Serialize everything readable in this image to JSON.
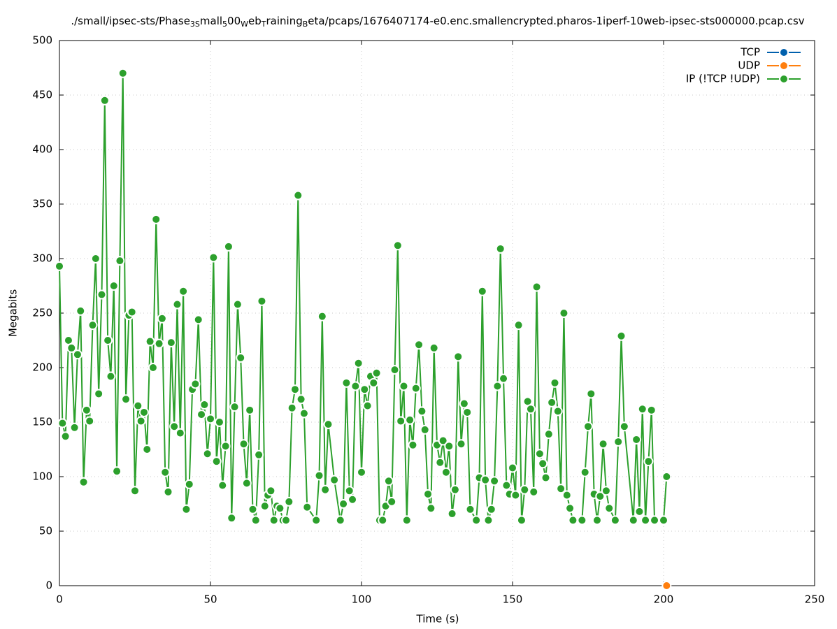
{
  "chart_data": {
    "type": "line",
    "title": [
      "./small/ipsec-sts/Phase",
      "3S",
      "mall",
      "5",
      "00",
      "W",
      "eb",
      "T",
      "raining",
      "B",
      "eta/pcaps/1676407174-e0.enc.smallencrypted.pharos-1iperf-10web-ipsec-sts000000.pcap.csv"
    ],
    "x_label": "Time (s)",
    "y_label": "Megabits",
    "xlim": [
      0,
      250
    ],
    "xticks": [
      0,
      50,
      100,
      150,
      200,
      250
    ],
    "ylim": [
      0,
      500
    ],
    "yticks": [
      0,
      50,
      100,
      150,
      200,
      250,
      300,
      350,
      400,
      450,
      500
    ],
    "grid": true,
    "legend": "top-right",
    "series": [
      {
        "name": "TCP",
        "color": "#0060ad",
        "x": [],
        "values": []
      },
      {
        "name": "UDP",
        "color": "#ff7f0e",
        "x": [
          201
        ],
        "values": [
          0
        ]
      },
      {
        "name": "IP (!TCP  !UDP)",
        "color": "#2ca02c",
        "x": [
          0,
          1,
          2,
          3,
          4,
          5,
          6,
          7,
          8,
          9,
          10,
          11,
          12,
          13,
          14,
          15,
          16,
          17,
          18,
          19,
          20,
          21,
          22,
          23,
          24,
          25,
          26,
          27,
          28,
          29,
          30,
          31,
          32,
          33,
          34,
          35,
          36,
          37,
          38,
          39,
          40,
          41,
          42,
          43,
          44,
          45,
          46,
          47,
          48,
          49,
          50,
          51,
          52,
          53,
          54,
          55,
          56,
          57,
          58,
          59,
          60,
          61,
          62,
          63,
          64,
          65,
          66,
          67,
          68,
          69,
          70,
          71,
          72,
          73,
          74,
          75,
          76,
          77,
          78,
          79,
          80,
          81,
          82,
          85,
          86,
          87,
          88,
          89,
          91,
          93,
          94,
          95,
          96,
          97,
          98,
          99,
          100,
          101,
          102,
          103,
          104,
          105,
          106,
          107,
          108,
          109,
          110,
          111,
          112,
          113,
          114,
          115,
          116,
          117,
          118,
          119,
          120,
          121,
          122,
          123,
          124,
          125,
          126,
          127,
          128,
          129,
          130,
          131,
          132,
          133,
          134,
          135,
          136,
          138,
          139,
          140,
          141,
          142,
          143,
          144,
          145,
          146,
          147,
          148,
          149,
          150,
          151,
          152,
          153,
          154,
          155,
          156,
          157,
          158,
          159,
          160,
          161,
          162,
          163,
          164,
          165,
          166,
          167,
          168,
          169,
          170,
          173,
          174,
          175,
          176,
          177,
          178,
          179,
          180,
          181,
          182,
          184,
          185,
          186,
          187,
          190,
          191,
          192,
          193,
          194,
          195,
          196,
          197,
          200,
          201
        ],
        "values": [
          293,
          149,
          137,
          225,
          218,
          145,
          212,
          252,
          95,
          161,
          151,
          239,
          300,
          176,
          267,
          445,
          225,
          192,
          275,
          105,
          298,
          470,
          171,
          248,
          251,
          87,
          165,
          151,
          159,
          125,
          224,
          200,
          336,
          222,
          245,
          104,
          86,
          223,
          146,
          258,
          140,
          270,
          70,
          93,
          180,
          185,
          244,
          157,
          166,
          121,
          153,
          301,
          114,
          150,
          92,
          128,
          311,
          62,
          164,
          258,
          209,
          130,
          94,
          161,
          70,
          60,
          120,
          261,
          73,
          83,
          87,
          60,
          73,
          71,
          60,
          60,
          77,
          163,
          180,
          358,
          171,
          158,
          72,
          60,
          101,
          247,
          88,
          148,
          97,
          60,
          75,
          186,
          87,
          79,
          183,
          204,
          104,
          180,
          165,
          192,
          186,
          195,
          60,
          60,
          73,
          96,
          77,
          198,
          312,
          151,
          183,
          60,
          152,
          129,
          181,
          221,
          160,
          143,
          84,
          71,
          218,
          129,
          113,
          133,
          104,
          128,
          66,
          88,
          210,
          130,
          167,
          159,
          70,
          60,
          99,
          270,
          97,
          60,
          70,
          96,
          183,
          309,
          190,
          92,
          84,
          108,
          83,
          239,
          60,
          88,
          169,
          162,
          86,
          274,
          121,
          112,
          99,
          139,
          168,
          186,
          160,
          89,
          250,
          83,
          71,
          60,
          60,
          104,
          146,
          176,
          84,
          60,
          82,
          130,
          87,
          71,
          60,
          132,
          229,
          146,
          60,
          134,
          68,
          162,
          60,
          114,
          161,
          60,
          60,
          100
        ]
      }
    ]
  }
}
